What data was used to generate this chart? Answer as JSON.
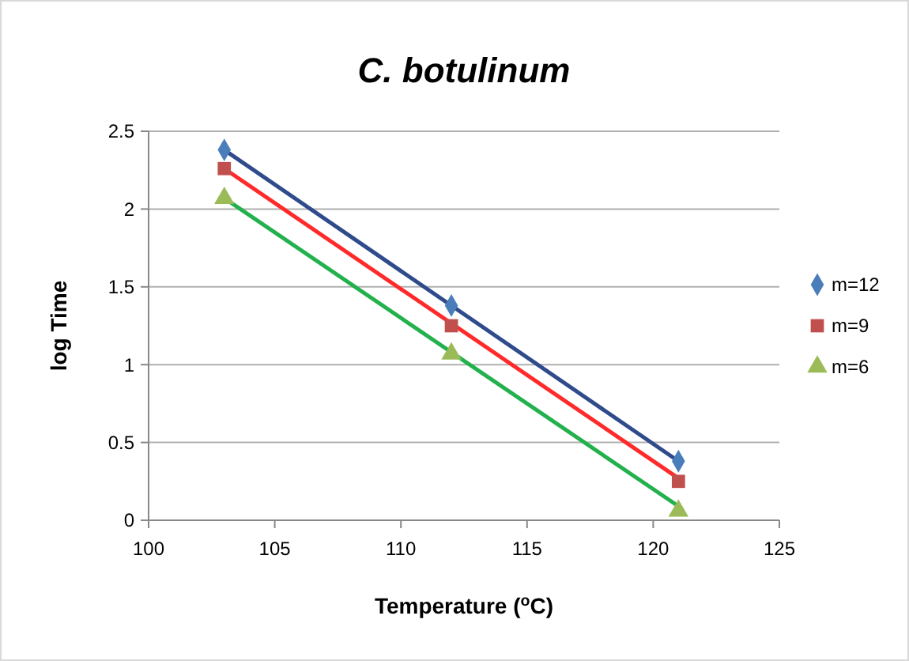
{
  "chart_data": {
    "type": "scatter",
    "title": "C. botulinum",
    "xlabel": "Temperature ($^{o}$C)",
    "ylabel": "log Time",
    "xlim": [
      100,
      125
    ],
    "xticks": [
      100,
      105,
      110,
      115,
      120,
      125
    ],
    "ylim": [
      0,
      2.5
    ],
    "yticks": [
      0,
      0.5,
      1,
      1.5,
      2,
      2.5
    ],
    "grid": "y",
    "legend": "right",
    "series": [
      {
        "name": "m=12",
        "color": "#4a7ebb",
        "marker": "diamond",
        "x": [
          103,
          112,
          121
        ],
        "values": [
          2.38,
          1.38,
          0.38
        ]
      },
      {
        "name": "m=9",
        "color": "#c0504d",
        "marker": "square",
        "x": [
          103,
          112,
          121
        ],
        "values": [
          2.26,
          1.25,
          0.25
        ]
      },
      {
        "name": "m=6",
        "color": "#9bbb59",
        "marker": "triangle",
        "x": [
          103,
          112,
          121
        ],
        "values": [
          2.07,
          1.07,
          0.06
        ]
      },
      {
        "type": "line",
        "color": "#2f4b8c",
        "x": [
          103,
          121
        ],
        "values": [
          2.38,
          0.38
        ]
      },
      {
        "type": "line",
        "color": "#ff2a2a",
        "x": [
          103,
          121
        ],
        "values": [
          2.26,
          0.27
        ]
      },
      {
        "type": "line",
        "color": "#22b14c",
        "x": [
          103,
          121
        ],
        "values": [
          2.07,
          0.09
        ]
      }
    ]
  }
}
